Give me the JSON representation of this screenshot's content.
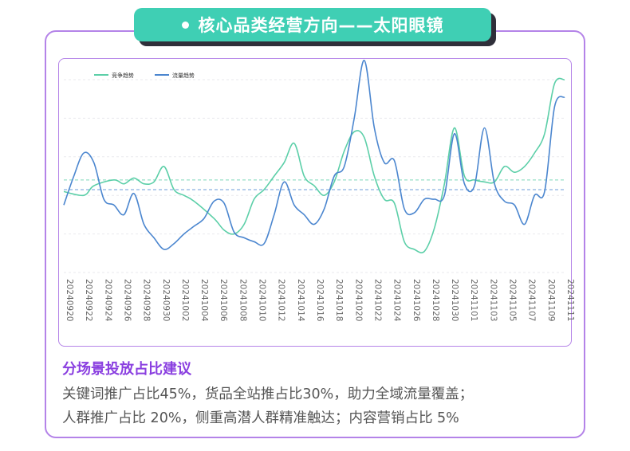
{
  "header": {
    "title": "核心品类经营方向——太阳眼镜"
  },
  "chart_data": {
    "type": "line",
    "legend_placement": "top-left",
    "grid": true,
    "x_tick_labels": [
      "20240920",
      "20240922",
      "20240924",
      "20240926",
      "20240928",
      "20240930",
      "20241002",
      "20241004",
      "20241006",
      "20241008",
      "20241010",
      "20241012",
      "20241014",
      "20241016",
      "20241018",
      "20241020",
      "20241022",
      "20241024",
      "20241026",
      "20241028",
      "20241030",
      "20241101",
      "20241103",
      "20241105",
      "20241107",
      "20241109",
      "20241111"
    ],
    "ylim": [
      0,
      100
    ],
    "series": [
      {
        "name": "竞争趋势",
        "color": "#5ccfa8",
        "values": [
          [
            0,
            42
          ],
          [
            2,
            40
          ],
          [
            3,
            45
          ],
          [
            5,
            48
          ],
          [
            6,
            46
          ],
          [
            7,
            49
          ],
          [
            8,
            46
          ],
          [
            9,
            47
          ],
          [
            10,
            55
          ],
          [
            11,
            43
          ],
          [
            12,
            40
          ],
          [
            13,
            37
          ],
          [
            15,
            28
          ],
          [
            16,
            22
          ],
          [
            17,
            20
          ],
          [
            18,
            25
          ],
          [
            19,
            38
          ],
          [
            20,
            43
          ],
          [
            21,
            50
          ],
          [
            22,
            57
          ],
          [
            23,
            67
          ],
          [
            24,
            50
          ],
          [
            25,
            45
          ],
          [
            26,
            40
          ],
          [
            27,
            47
          ],
          [
            28,
            63
          ],
          [
            29,
            73
          ],
          [
            30,
            70
          ],
          [
            31,
            50
          ],
          [
            32,
            38
          ],
          [
            33,
            36
          ],
          [
            34,
            16
          ],
          [
            35,
            12
          ],
          [
            36,
            11
          ],
          [
            37,
            23
          ],
          [
            38,
            46
          ],
          [
            39,
            75
          ],
          [
            40,
            50
          ],
          [
            41,
            48
          ],
          [
            42,
            47
          ],
          [
            43,
            47
          ],
          [
            44,
            55
          ],
          [
            45,
            52
          ],
          [
            46,
            55
          ],
          [
            47,
            62
          ],
          [
            48,
            72
          ],
          [
            49,
            98
          ],
          [
            50,
            100
          ]
        ]
      },
      {
        "name": "流量趋势",
        "color": "#4b86cf",
        "values": [
          [
            0,
            35
          ],
          [
            1,
            50
          ],
          [
            2,
            62
          ],
          [
            3,
            57
          ],
          [
            4,
            38
          ],
          [
            5,
            35
          ],
          [
            6,
            30
          ],
          [
            7,
            41
          ],
          [
            8,
            25
          ],
          [
            9,
            18
          ],
          [
            10,
            12
          ],
          [
            11,
            15
          ],
          [
            12,
            20
          ],
          [
            13,
            24
          ],
          [
            14,
            28
          ],
          [
            15,
            37
          ],
          [
            16,
            36
          ],
          [
            17,
            21
          ],
          [
            18,
            18
          ],
          [
            19,
            16
          ],
          [
            20,
            15
          ],
          [
            21,
            30
          ],
          [
            22,
            47
          ],
          [
            23,
            35
          ],
          [
            24,
            30
          ],
          [
            25,
            25
          ],
          [
            26,
            33
          ],
          [
            27,
            50
          ],
          [
            28,
            55
          ],
          [
            29,
            80
          ],
          [
            30,
            110
          ],
          [
            31,
            75
          ],
          [
            32,
            57
          ],
          [
            33,
            58
          ],
          [
            34,
            33
          ],
          [
            35,
            31
          ],
          [
            36,
            38
          ],
          [
            37,
            38
          ],
          [
            38,
            40
          ],
          [
            39,
            72
          ],
          [
            40,
            46
          ],
          [
            41,
            45
          ],
          [
            42,
            75
          ],
          [
            43,
            46
          ],
          [
            44,
            37
          ],
          [
            45,
            35
          ],
          [
            46,
            25
          ],
          [
            47,
            40
          ],
          [
            48,
            42
          ],
          [
            49,
            86
          ],
          [
            50,
            91
          ]
        ]
      }
    ],
    "reference_lines": [
      {
        "series": "竞争趋势",
        "value": 48
      },
      {
        "series": "流量趋势",
        "value": 43
      }
    ]
  },
  "advice": {
    "title": "分场景投放占比建议",
    "line1": "关键词推广占比45%，货品全站推占比30%，助力全域流量覆盖；",
    "line2": "人群推广占比 20%，侧重高潜人群精准触达；内容营销占比 5%"
  }
}
